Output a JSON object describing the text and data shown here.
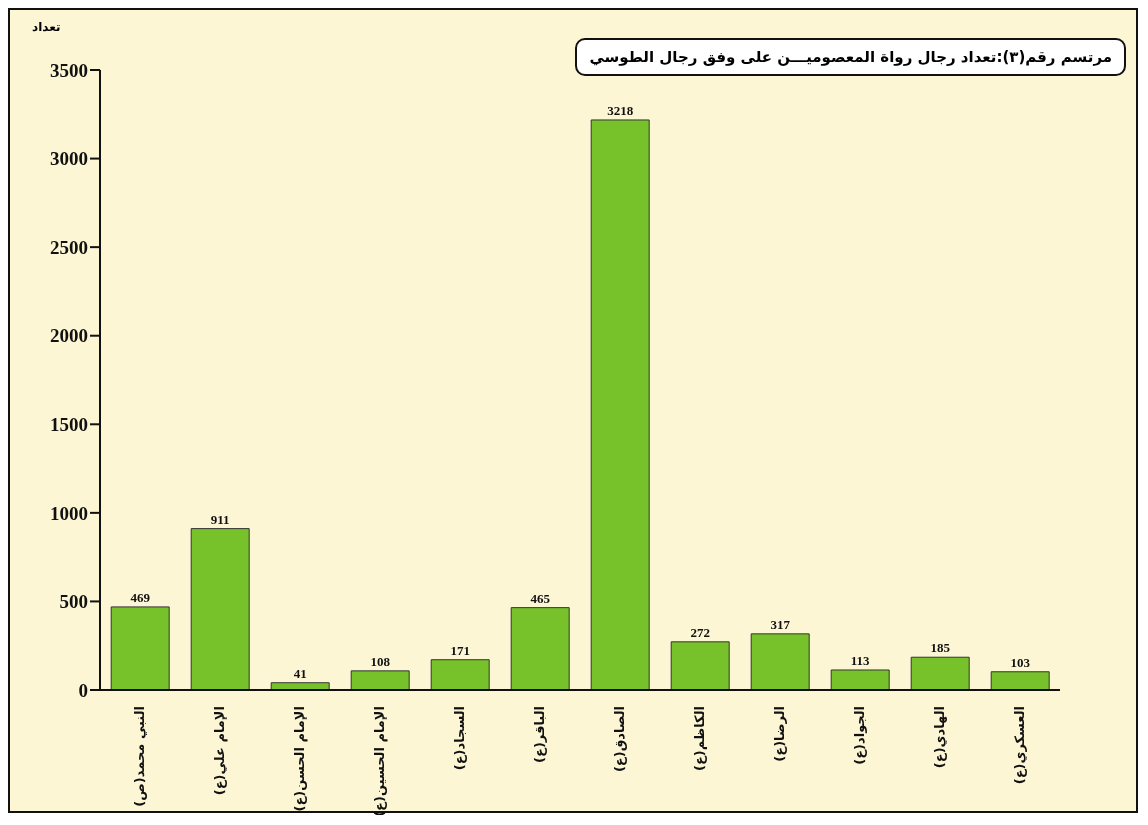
{
  "chart_data": {
    "type": "bar",
    "title": "مرتسم رقم(٣):تعداد  رجال رواة المعصوميـــن على وفق رجال الطوسي",
    "ylabel": "تعداد",
    "categories": [
      "النبي محمد(ص)",
      "الإمام علي(ع)",
      "الإمام الحسن(ع)",
      "الإمام الحسين(ع)",
      "السجاد(ع)",
      "الباقر(ع)",
      "الصادق(ع)",
      "الكاظم(ع)",
      "الرضا(ع)",
      "الجواد(ع)",
      "الهادي(ع)",
      "العسكري(ع)"
    ],
    "values": [
      469,
      911,
      41,
      108,
      171,
      465,
      3218,
      272,
      317,
      113,
      185,
      103
    ],
    "color": "#77c22a",
    "ylim": [
      0,
      3500
    ],
    "yticks": [
      0,
      500,
      1000,
      1500,
      2000,
      2500,
      3000,
      3500
    ],
    "data_labels": true,
    "grid": false
  }
}
